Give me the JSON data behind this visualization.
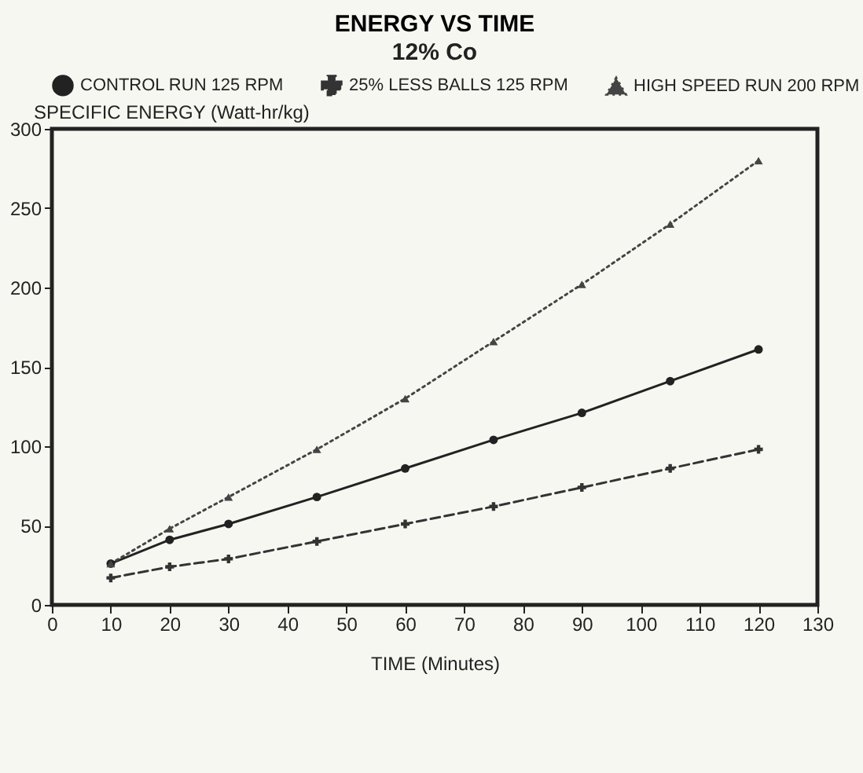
{
  "chart_data": {
    "type": "line",
    "title": "ENERGY VS TIME",
    "subtitle": "12% Co",
    "xlabel": "TIME (Minutes)",
    "ylabel": "SPECIFIC ENERGY (Watt-hr/kg)",
    "x": [
      10,
      20,
      30,
      45,
      60,
      75,
      90,
      105,
      120
    ],
    "series": [
      {
        "name": "CONTROL RUN 125 RPM",
        "color": "#222222",
        "line_style": "solid",
        "marker": "circle",
        "values": [
          26,
          41,
          51,
          68,
          86,
          104,
          121,
          141,
          161
        ]
      },
      {
        "name": "25% LESS BALLS 125 RPM",
        "color": "#333333",
        "line_style": "dashed",
        "marker": "cross",
        "values": [
          17,
          24,
          29,
          40,
          51,
          62,
          74,
          86,
          98
        ]
      },
      {
        "name": "HIGH SPEED RUN 200 RPM",
        "color": "#444444",
        "line_style": "dotted",
        "marker": "triangle",
        "values": [
          26,
          48,
          68,
          98,
          130,
          166,
          202,
          240,
          280
        ]
      }
    ],
    "xlim": [
      0,
      130
    ],
    "xticks": [
      0,
      10,
      20,
      30,
      40,
      50,
      60,
      70,
      80,
      90,
      100,
      110,
      120,
      130
    ],
    "ylim": [
      0,
      300
    ],
    "yticks": [
      0,
      50,
      100,
      150,
      200,
      250,
      300
    ],
    "grid": false,
    "legend": "top"
  }
}
